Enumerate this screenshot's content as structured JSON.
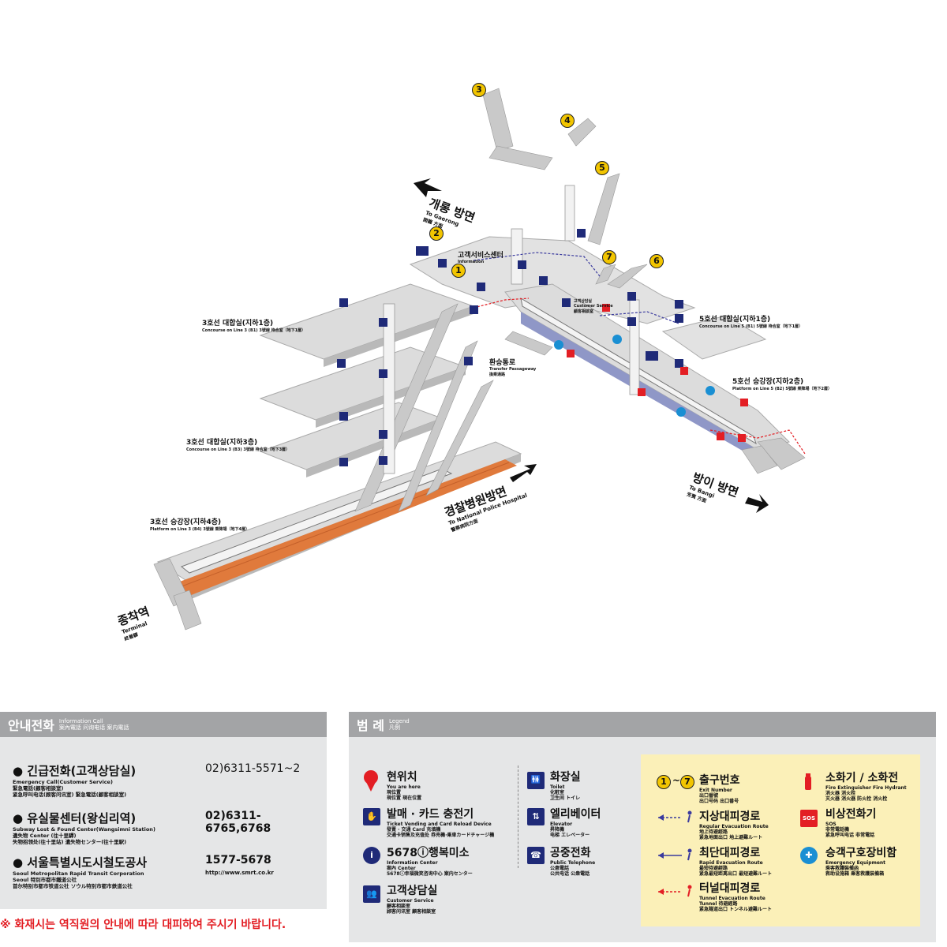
{
  "map": {
    "levels": [
      {
        "name": "concourse_3",
        "ko": "3호선 대합실(지하1층)",
        "en": "Concourse on Line 3 (B1)  3號線 待合室（地下1層）"
      },
      {
        "name": "concourse_3b",
        "ko": "3호선 대합실(지하3층)",
        "en": "Concourse on Line 3 (B3)  3號線 待合室（地下3層）"
      },
      {
        "name": "platform_3",
        "ko": "3호선 승강장(지하4층)",
        "en": "Platform on Line 3 (B4)  3號線 乘降場（地下4層）"
      },
      {
        "name": "concourse_5",
        "ko": "5호선 대합실(지하1층)",
        "en": "Concourse on Line 5 (B1)  5號線 待合室（地下1層）"
      },
      {
        "name": "platform_5",
        "ko": "5호선 승강장(지하2층)",
        "en": "Platform on Line 5 (B2)  5號線 乘降場（地下2層）"
      }
    ],
    "directions": {
      "gaerong": {
        "ko": "개롱 방면",
        "en": "To Gaerong",
        "cn": "開籠 方面"
      },
      "police": {
        "ko": "경찰병원방면",
        "en": "To National Police Hospital",
        "cn": "警察病院方面"
      },
      "bangi": {
        "ko": "방이 방면",
        "en": "To Bangi",
        "cn": "芳荑 方面"
      },
      "terminal": {
        "ko": "종착역",
        "en": "Terminal",
        "cn": "終着驛"
      }
    },
    "transfer": {
      "ko": "환승통로",
      "en": "Transfer Passageway",
      "cn": "換乘通路"
    },
    "service_center": {
      "ko": "고객서비스센터",
      "en": "Information"
    },
    "customer_service": {
      "ko": "고객상담실",
      "en": "Customer Service",
      "cn": "顧客相談室"
    },
    "exits": [
      "1",
      "2",
      "3",
      "4",
      "5",
      "6",
      "7"
    ],
    "colors": {
      "floor": "#dcdcdc",
      "floor_dark": "#b9b9b9",
      "stair": "#c9c9c9",
      "track3": "#e07a3c",
      "track5": "#8f97c7",
      "navy": "#1f2a78",
      "red": "#e31e24",
      "exit": "#f2c500"
    }
  },
  "info": {
    "title": "안내전화",
    "title_sub1": "Information Call",
    "title_sub2": "案內電話  问询电话  案内電話",
    "rows": [
      {
        "ko": "● 긴급전화(고객상담실)",
        "sub1": "Emergency Call(Customer Service)",
        "sub2": "緊急電話(顧客相談室)",
        "sub3": "紧急呼叫电话(顾客问讯室)   緊急電話(顧客相談室)",
        "num": "02)6311-5571~2",
        "url": ""
      },
      {
        "ko": "● 유실물센터(왕십리역)",
        "sub1": "Subway Lost & Found Center(Wangsimni Station)",
        "sub2": "遺失物 Center (往十里驛)",
        "sub3": "失物招领处(往十里站)   遺失物センター(往十里駅)",
        "num": "02)6311-6765,6768",
        "url": ""
      },
      {
        "ko": "● 서울특별시도시철도공사",
        "sub1": "Seoul Metropolitan Rapid Transit Corporation",
        "sub2": "Seoul 特別市都市鐵道公社",
        "sub3": "首尔特别市都市铁道公社   ソウル特別市都市鉄道公社",
        "num": "1577-5678",
        "url": "http://www.smrt.co.kr"
      }
    ]
  },
  "legend": {
    "title": "범  례",
    "title_sub1": "Legend",
    "title_sub2": "凡例",
    "items": [
      {
        "ko": "현위치",
        "sub1": "You are here",
        "sub2": "現位置",
        "sub3": "現位置   現在位置"
      },
      {
        "ko": "발매 · 카드 충전기",
        "sub1": "Ticket Vending and Card Reload Device",
        "sub2": "發賣 · 交通 Card 充填機",
        "sub3": "交通卡销售及充值处   券売機·乗車カードチャージ機"
      },
      {
        "ko": "5678ⓘ행복미소",
        "sub1": "Information Center",
        "sub2": "案內 Center",
        "sub3": "5678ⓘ幸福微笑咨询中心   案内センター"
      },
      {
        "ko": "고객상담실",
        "sub1": "Customer Service",
        "sub2": "顧客相談室",
        "sub3": "顾客问讯室   顧客相談室"
      },
      {
        "ko": "화장실",
        "sub1": "Toilet",
        "sub2": "化粧室",
        "sub3": "卫生间   トイレ"
      },
      {
        "ko": "엘리베이터",
        "sub1": "Elevator",
        "sub2": "昇降機",
        "sub3": "电梯   エレベーター"
      },
      {
        "ko": "공중전화",
        "sub1": "Public Telephone",
        "sub2": "公衆電話",
        "sub3": "公共电话   公衆電話"
      },
      {
        "ko": "출구번호",
        "sub1": "Exit Number",
        "sub2": "出口番號",
        "sub3": "出口号码   出口番号"
      },
      {
        "ko": "지상대피경로",
        "sub1": "Regular Evacuation Route",
        "sub2": "地上待避經路",
        "sub3": "紧急地面出口   地上避難ルート"
      },
      {
        "ko": "최단대피경로",
        "sub1": "Rapid Evacuation Route",
        "sub2": "最短待避經路",
        "sub3": "紧急最短距离出口   最短避難ルート"
      },
      {
        "ko": "터널대피경로",
        "sub1": "Tunnel Evacuation Route",
        "sub2": "Tunnel 待避經路",
        "sub3": "紧急隧道出口   トンネル避難ルート"
      },
      {
        "ko": "소화기 / 소화전",
        "sub1": "Fire Extinguisher   Fire Hydrant",
        "sub2": "消火器            消火栓",
        "sub3": "灭火器   消火器        防火栓   消火栓"
      },
      {
        "ko": "비상전화기",
        "sub1": "SOS",
        "sub2": "非常電話機",
        "sub3": "紧急呼叫电话   非常電話"
      },
      {
        "ko": "승객구호장비함",
        "sub1": "Emergency Equipment",
        "sub2": "乘客救護裝備函",
        "sub3": "救助设施箱   乗客救護装備箱"
      }
    ],
    "exit_range": "~"
  },
  "warning": "※ 화재시는 역직원의 안내에 따라 대피하여 주시기 바랍니다."
}
